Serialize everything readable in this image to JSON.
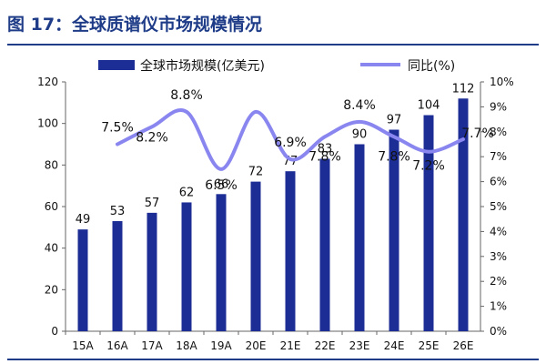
{
  "title": "图 17：全球质谱仪市场规模情况",
  "colors": {
    "title": "#1f3c88",
    "bar": "#1c2e96",
    "line": "#8a86f0",
    "text": "#111111",
    "axis": "#666666"
  },
  "chart_data": {
    "type": "bar",
    "categories": [
      "15A",
      "16A",
      "17A",
      "18A",
      "19A",
      "20E",
      "21E",
      "22E",
      "23E",
      "24E",
      "25E",
      "26E"
    ],
    "series": [
      {
        "name": "全球市场规模(亿美元)",
        "type": "bar",
        "axis": "left",
        "values": [
          49,
          53,
          57,
          62,
          66,
          72,
          77,
          83,
          90,
          97,
          104,
          112
        ]
      },
      {
        "name": "同比(%)",
        "type": "line",
        "axis": "right",
        "values": [
          null,
          7.5,
          8.2,
          8.8,
          6.5,
          8.8,
          6.9,
          7.8,
          8.4,
          7.8,
          7.2,
          7.7
        ],
        "labels": [
          null,
          "7.5%",
          "8.2%",
          "8.8%",
          "6.5%",
          "",
          "6.9%",
          "7.8%",
          "8.4%",
          "7.8%",
          "7.2%",
          "7.7%"
        ]
      }
    ],
    "y_left": {
      "min": 0,
      "max": 120,
      "ticks": [
        0,
        20,
        40,
        60,
        80,
        100,
        120
      ]
    },
    "y_right": {
      "min": 0,
      "max": 10,
      "ticks": [
        "0%",
        "1%",
        "2%",
        "3%",
        "4%",
        "5%",
        "6%",
        "7%",
        "8%",
        "9%",
        "10%"
      ]
    },
    "legend_position": "top",
    "grid": false
  }
}
